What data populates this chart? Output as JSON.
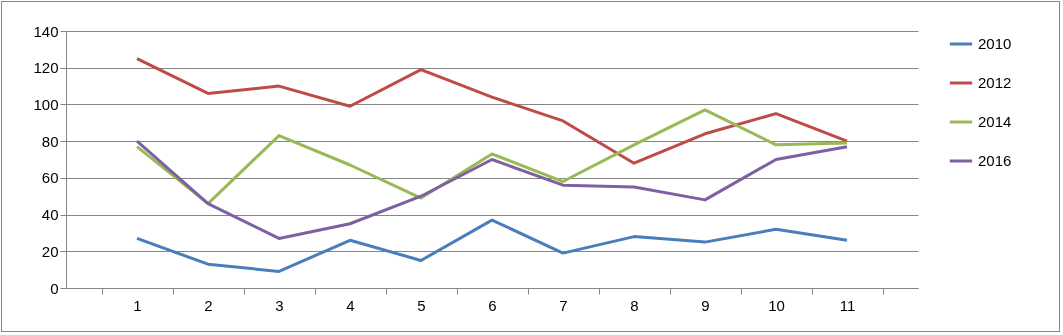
{
  "chart_data": {
    "type": "line",
    "categories": [
      "1",
      "2",
      "3",
      "4",
      "5",
      "6",
      "7",
      "8",
      "9",
      "10",
      "11"
    ],
    "series": [
      {
        "name": "2010",
        "color": "#4a7ebb",
        "values": [
          27,
          13,
          9,
          26,
          15,
          37,
          19,
          28,
          25,
          32,
          26
        ]
      },
      {
        "name": "2012",
        "color": "#be4b48",
        "values": [
          125,
          106,
          110,
          99,
          119,
          104,
          91,
          68,
          84,
          95,
          80
        ]
      },
      {
        "name": "2014",
        "color": "#98b954",
        "values": [
          77,
          46,
          83,
          67,
          49,
          73,
          58,
          78,
          97,
          78,
          79
        ]
      },
      {
        "name": "2016",
        "color": "#7d60a0",
        "values": [
          80,
          46,
          27,
          35,
          50,
          70,
          56,
          55,
          48,
          70,
          77
        ]
      }
    ],
    "ylim": [
      0,
      140
    ],
    "yticks": [
      0,
      20,
      40,
      60,
      80,
      100,
      120,
      140
    ],
    "grid": "y",
    "legend": "right",
    "marker": "none",
    "line_style": "solid"
  }
}
